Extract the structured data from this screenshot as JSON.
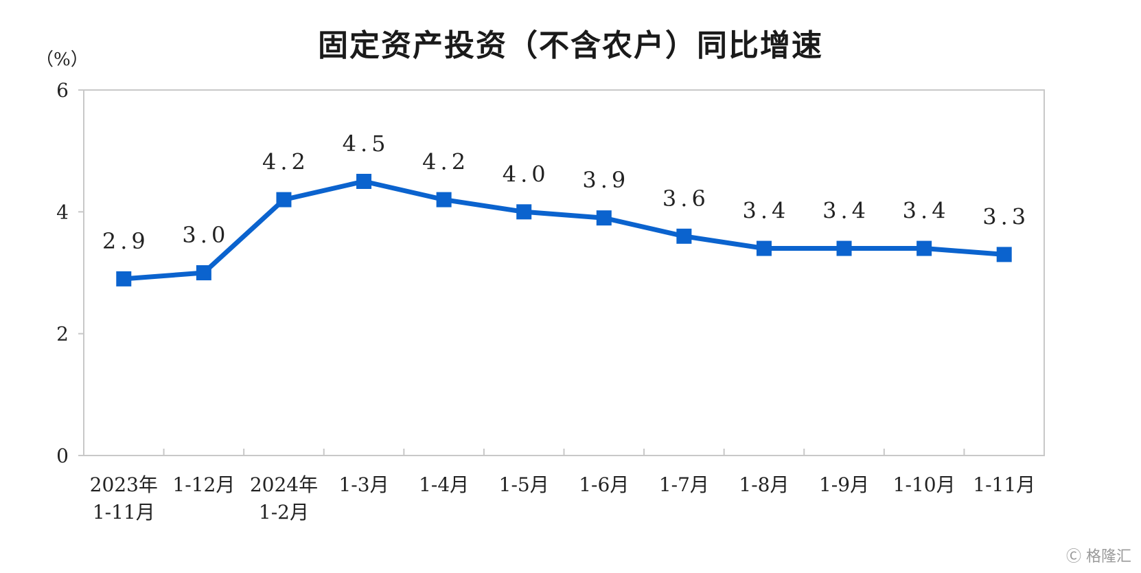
{
  "chart_data": {
    "type": "line",
    "title": "固定资产投资（不含农户）同比增速",
    "ylabel": "（%）",
    "xlabel": "",
    "ylim": [
      0,
      6
    ],
    "yticks": [
      "0",
      "2",
      "4",
      "6"
    ],
    "grid": false,
    "categories": [
      [
        "2023年",
        "1-11月"
      ],
      [
        "1-12月"
      ],
      [
        "2024年",
        "1-2月"
      ],
      [
        "1-3月"
      ],
      [
        "1-4月"
      ],
      [
        "1-5月"
      ],
      [
        "1-6月"
      ],
      [
        "1-7月"
      ],
      [
        "1-8月"
      ],
      [
        "1-9月"
      ],
      [
        "1-10月"
      ],
      [
        "1-11月"
      ]
    ],
    "values": [
      2.9,
      3.0,
      4.2,
      4.5,
      4.2,
      4.0,
      3.9,
      3.6,
      3.4,
      3.4,
      3.4,
      3.3
    ],
    "data_labels": [
      "2.9",
      "3.0",
      "4.2",
      "4.5",
      "4.2",
      "4.0",
      "3.9",
      "3.6",
      "3.4",
      "3.4",
      "3.4",
      "3.3"
    ],
    "line_color": "#0b63ce"
  },
  "watermark": "格隆汇"
}
